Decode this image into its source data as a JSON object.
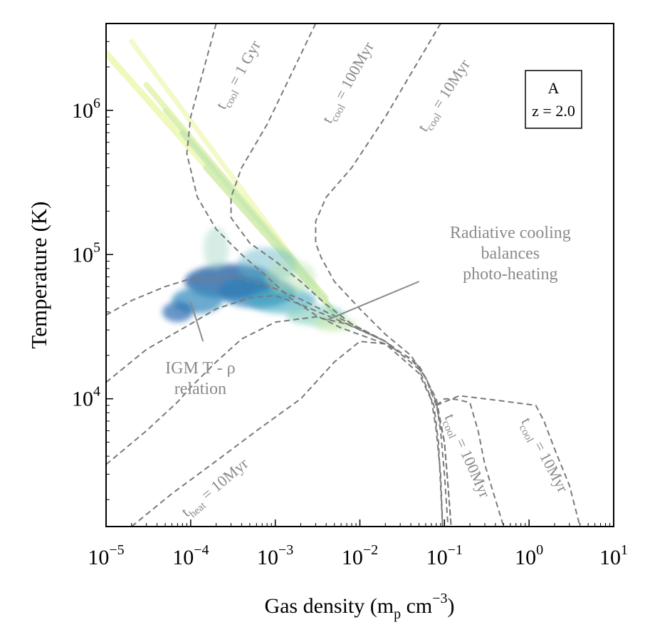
{
  "chart_data": {
    "type": "heatmap",
    "xlabel": "Gas density (m_p cm^-3)",
    "xlabel_parts": {
      "main": "Gas density (m",
      "sub": "p",
      "mid": " cm",
      "sup": "−3",
      "end": ")"
    },
    "ylabel": "Temperature (K)",
    "x_scale": "log",
    "y_scale": "log",
    "xlim": [
      1e-05,
      10
    ],
    "ylim": [
      1300,
      4000000
    ],
    "x_ticks": [
      {
        "value": 1e-05,
        "base": "10",
        "exp": "−5"
      },
      {
        "value": 0.0001,
        "base": "10",
        "exp": "−4"
      },
      {
        "value": 0.001,
        "base": "10",
        "exp": "−3"
      },
      {
        "value": 0.01,
        "base": "10",
        "exp": "−2"
      },
      {
        "value": 0.1,
        "base": "10",
        "exp": "−1"
      },
      {
        "value": 1,
        "base": "10",
        "exp": "0"
      },
      {
        "value": 10,
        "base": "10",
        "exp": "1"
      }
    ],
    "y_ticks": [
      {
        "value": 10000.0,
        "base": "10",
        "exp": "4"
      },
      {
        "value": 100000.0,
        "base": "10",
        "exp": "5"
      },
      {
        "value": 1000000.0,
        "base": "10",
        "exp": "6"
      }
    ],
    "grid": false,
    "colormap": "YlGnBu",
    "legend_box": {
      "line1": "A",
      "line2": "z = 2.0",
      "placement": "top-right"
    },
    "colors": {
      "curve": "#7a7a7a",
      "annotation": "#8a8a8a",
      "axis": "#000000"
    },
    "curves": [
      {
        "name": "cool_1Gyr_upper",
        "points": [
          [
            0.0002,
            4000000
          ],
          [
            0.0001,
            900000
          ],
          [
            9e-05,
            500000
          ],
          [
            0.00012,
            250000
          ],
          [
            0.0002,
            150000
          ],
          [
            0.0004,
            100000
          ],
          [
            0.0008,
            70000
          ],
          [
            0.0015,
            50000
          ],
          [
            0.003,
            38000
          ],
          [
            0.006,
            31000
          ],
          [
            0.02,
            24000
          ],
          [
            0.05,
            15000
          ],
          [
            0.075,
            9000
          ],
          [
            0.085,
            5000
          ],
          [
            0.09,
            2500
          ],
          [
            0.095,
            1300
          ]
        ]
      },
      {
        "name": "cool_1Gyr_upper_lowside",
        "points": [
          [
            1e-05,
            38000
          ],
          [
            2e-05,
            48000
          ],
          [
            5e-05,
            60000
          ],
          [
            0.0001,
            68000
          ],
          [
            0.0002,
            68000
          ],
          [
            0.0003,
            70000
          ],
          [
            0.0005,
            65000
          ],
          [
            0.001,
            58000
          ],
          [
            0.002,
            49000
          ],
          [
            0.004,
            40000
          ],
          [
            0.008,
            33000
          ],
          [
            0.02,
            25000
          ]
        ]
      },
      {
        "name": "cool_100Myr_upper",
        "points": [
          [
            0.003,
            4000000
          ],
          [
            0.0008,
            800000
          ],
          [
            0.0004,
            400000
          ],
          [
            0.0003,
            250000
          ],
          [
            0.0003,
            180000
          ],
          [
            0.0005,
            120000
          ],
          [
            0.001,
            90000
          ],
          [
            0.002,
            65000
          ],
          [
            0.004,
            45000
          ],
          [
            0.008,
            33000
          ],
          [
            0.02,
            25000
          ]
        ]
      },
      {
        "name": "cool_10Myr_upper",
        "points": [
          [
            0.09,
            4000000
          ],
          [
            0.02,
            900000
          ],
          [
            0.008,
            400000
          ],
          [
            0.004,
            250000
          ],
          [
            0.003,
            170000
          ],
          [
            0.003,
            120000
          ],
          [
            0.0035,
            95000
          ],
          [
            0.005,
            65000
          ],
          [
            0.01,
            42000
          ],
          [
            0.02,
            28000
          ],
          [
            0.04,
            20000
          ],
          [
            0.06,
            14000
          ],
          [
            0.08,
            9500
          ],
          [
            0.09,
            6000
          ],
          [
            0.1,
            3000
          ],
          [
            0.11,
            1300
          ]
        ]
      },
      {
        "name": "heating_branch_a",
        "points": [
          [
            1e-05,
            13000
          ],
          [
            3e-05,
            22000
          ],
          [
            0.0001,
            33000
          ],
          [
            0.0002,
            42000
          ],
          [
            0.0005,
            50000
          ],
          [
            0.001,
            52000
          ],
          [
            0.002,
            45000
          ],
          [
            0.004,
            38000
          ],
          [
            0.008,
            32000
          ],
          [
            0.02,
            25000
          ],
          [
            0.05,
            16000
          ],
          [
            0.07,
            10000
          ],
          [
            0.08,
            6000
          ],
          [
            0.09,
            3000
          ],
          [
            0.095,
            1300
          ]
        ]
      },
      {
        "name": "heating_branch_b",
        "points": [
          [
            1e-05,
            3500
          ],
          [
            3e-05,
            6000
          ],
          [
            7e-05,
            9500
          ],
          [
            0.0001,
            12000
          ],
          [
            0.0002,
            18000
          ],
          [
            0.0004,
            26000
          ],
          [
            0.001,
            34000
          ],
          [
            0.003,
            37000
          ],
          [
            0.007,
            33000
          ],
          [
            0.02,
            25000
          ],
          [
            0.05,
            17000
          ],
          [
            0.08,
            10000
          ],
          [
            0.1,
            5000
          ],
          [
            0.11,
            2500
          ],
          [
            0.12,
            1300
          ]
        ]
      },
      {
        "name": "heat_10Myr",
        "points": [
          [
            2e-05,
            1300
          ],
          [
            6e-05,
            2200
          ],
          [
            0.0002,
            3700
          ],
          [
            0.0006,
            6000
          ],
          [
            0.002,
            10000
          ],
          [
            0.005,
            18000
          ],
          [
            0.01,
            25000
          ],
          [
            0.02,
            24000
          ],
          [
            0.04,
            19000
          ],
          [
            0.06,
            14000
          ],
          [
            0.08,
            9000
          ],
          [
            0.1,
            5000
          ],
          [
            0.11,
            2500
          ],
          [
            0.12,
            1300
          ]
        ]
      },
      {
        "name": "cool_100Myr_lower",
        "points": [
          [
            0.08,
            9000
          ],
          [
            0.1,
            10000
          ],
          [
            0.12,
            10000
          ],
          [
            0.15,
            9800
          ],
          [
            0.2,
            9400
          ],
          [
            0.25,
            6000
          ],
          [
            0.3,
            3500
          ],
          [
            0.4,
            2000
          ],
          [
            0.5,
            1300
          ]
        ]
      },
      {
        "name": "cool_10Myr_lower",
        "points": [
          [
            0.08,
            9000
          ],
          [
            0.15,
            10500
          ],
          [
            0.3,
            10000
          ],
          [
            0.6,
            9500
          ],
          [
            1.2,
            9000
          ],
          [
            1.5,
            7000
          ],
          [
            2,
            4500
          ],
          [
            3,
            2500
          ],
          [
            4,
            1300
          ]
        ]
      }
    ],
    "heat_blobs": [
      {
        "x": 0.0003,
        "y": 65000,
        "xw": 0.55,
        "yw": 0.12,
        "color": "#1f5aa0",
        "a": 0.75
      },
      {
        "x": 0.0006,
        "y": 55000,
        "xw": 0.45,
        "yw": 0.11,
        "color": "#2c7fb8",
        "a": 0.7
      },
      {
        "x": 0.00012,
        "y": 48000,
        "xw": 0.3,
        "yw": 0.09,
        "color": "#3a8fc0",
        "a": 0.75
      },
      {
        "x": 7e-05,
        "y": 40000,
        "xw": 0.18,
        "yw": 0.07,
        "color": "#2b6cb0",
        "a": 0.7
      },
      {
        "x": 0.0012,
        "y": 48000,
        "xw": 0.4,
        "yw": 0.09,
        "color": "#41a8c0",
        "a": 0.6
      },
      {
        "x": 0.003,
        "y": 38000,
        "xw": 0.35,
        "yw": 0.07,
        "color": "#7fcdbb",
        "a": 0.6
      },
      {
        "x": 0.005,
        "y": 33000,
        "xw": 0.25,
        "yw": 0.05,
        "color": "#c7e9b4",
        "a": 0.7
      },
      {
        "x": 0.0008,
        "y": 85000,
        "xw": 0.35,
        "yw": 0.12,
        "color": "#5fb5c8",
        "a": 0.45
      },
      {
        "x": 0.0002,
        "y": 110000,
        "xw": 0.15,
        "yw": 0.15,
        "color": "#9ad2c0",
        "a": 0.4
      },
      {
        "x": 0.0015,
        "y": 70000,
        "xw": 0.3,
        "yw": 0.12,
        "color": "#b7e2b1",
        "a": 0.45
      }
    ],
    "streaks": [
      {
        "x1": 1e-05,
        "y1": 2500000,
        "x2": 0.0015,
        "y2": 90000,
        "color": "#edf8b1",
        "w": 9
      },
      {
        "x1": 2e-05,
        "y1": 3000000,
        "x2": 0.002,
        "y2": 80000,
        "color": "#f1f9c0",
        "w": 7
      },
      {
        "x1": 3e-05,
        "y1": 1500000,
        "x2": 0.003,
        "y2": 60000,
        "color": "#e3f3b0",
        "w": 8
      },
      {
        "x1": 5e-05,
        "y1": 1000000,
        "x2": 0.004,
        "y2": 50000,
        "color": "#d9efb0",
        "w": 7
      },
      {
        "x1": 8e-05,
        "y1": 700000,
        "x2": 0.005,
        "y2": 40000,
        "color": "#c7e9b4",
        "w": 8
      },
      {
        "x1": 0.00015,
        "y1": 400000,
        "x2": 0.006,
        "y2": 35000,
        "color": "#d4eeb3",
        "w": 7
      }
    ],
    "curve_labels": [
      {
        "x": 0.00025,
        "y": 1000000,
        "rot": -61,
        "main": "t",
        "sub": "cool",
        "rest": " = 1 Gyr"
      },
      {
        "x": 0.0045,
        "y": 800000,
        "rot": -61,
        "main": "t",
        "sub": "cool",
        "rest": " = 100Myr"
      },
      {
        "x": 0.06,
        "y": 700000,
        "rot": -57,
        "main": "t",
        "sub": "cool",
        "rest": " = 10Myr"
      },
      {
        "x": 9e-05,
        "y": 1500,
        "rot": -40,
        "main": "t",
        "sub": "heat",
        "rest": " = 10Myr"
      },
      {
        "x": 0.1,
        "y": 7500,
        "rot": 66,
        "main": "t",
        "sub": "cool",
        "rest": " = 100Myr"
      },
      {
        "x": 0.8,
        "y": 7000,
        "rot": 62,
        "main": "t",
        "sub": "cool",
        "rest": " = 10Myr"
      }
    ],
    "annotations": [
      {
        "lines": [
          "Radiative cooling",
          "balances",
          "photo-heating"
        ],
        "x": 0.6,
        "y": 130000,
        "arrow_to": [
          0.004,
          35000
        ],
        "arrow_from": [
          0.05,
          65000
        ]
      },
      {
        "lines": [
          "IGM T - ρ",
          "relation"
        ],
        "x": 0.00013,
        "y": 15000,
        "arrow_to": [
          0.0001,
          47000
        ],
        "arrow_from": [
          0.00014,
          25000
        ]
      }
    ]
  }
}
